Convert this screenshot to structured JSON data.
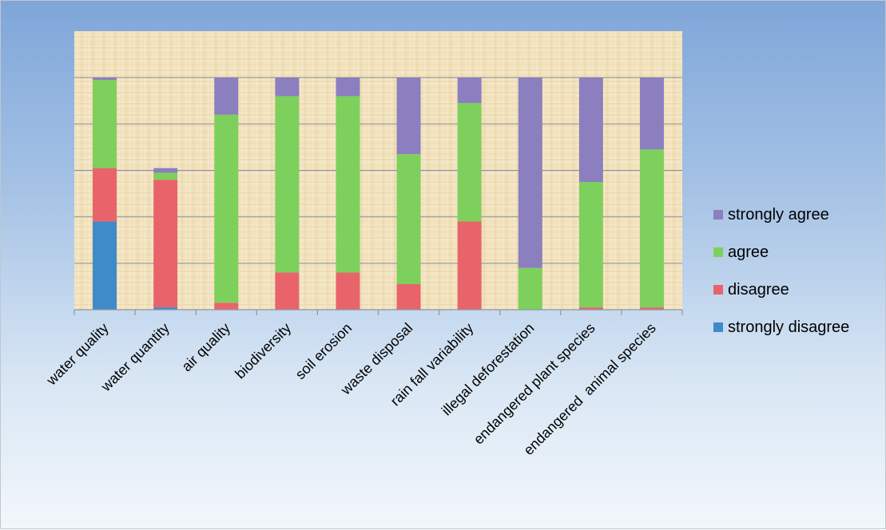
{
  "colors": {
    "strongly_agree": "#8b7fbf",
    "agree": "#7ed05c",
    "disagree": "#e8646a",
    "strongly_disagree": "#3f8bc8"
  },
  "chart_data": {
    "type": "bar",
    "stacked": true,
    "categories": [
      "water quality",
      "water quantity",
      "air quality",
      "biodiversity",
      "soil erosion",
      "waste disposal",
      "rain fall variability",
      "illegal deforestation",
      "endangered plant species",
      "endangered  animal species"
    ],
    "series": [
      {
        "name": "strongly disagree",
        "values": [
          38,
          1,
          0,
          0,
          0,
          0,
          0,
          0,
          0,
          0
        ]
      },
      {
        "name": "disagree",
        "values": [
          23,
          55,
          3,
          16,
          16,
          11,
          38,
          0,
          1,
          1
        ]
      },
      {
        "name": "agree",
        "values": [
          38,
          3,
          81,
          76,
          76,
          56,
          51,
          18,
          54,
          68
        ]
      },
      {
        "name": "strongly agree",
        "values": [
          1,
          2,
          16,
          8,
          8,
          33,
          11,
          82,
          45,
          31
        ]
      }
    ],
    "ylim": [
      0,
      120
    ],
    "grid": true,
    "legend_position": "right",
    "title": "",
    "xlabel": "",
    "ylabel": ""
  }
}
